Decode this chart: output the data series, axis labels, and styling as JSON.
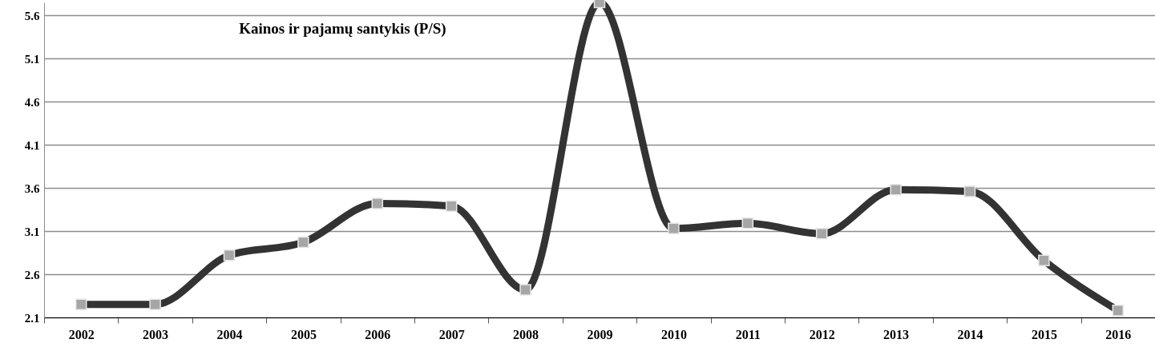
{
  "chart_data": {
    "type": "line",
    "title": "Kainos ir pajamų santykis (P/S)",
    "categories": [
      "2002",
      "2003",
      "2004",
      "2005",
      "2006",
      "2007",
      "2008",
      "2009",
      "2010",
      "2011",
      "2012",
      "2013",
      "2014",
      "2015",
      "2016"
    ],
    "series": [
      {
        "color": "#333333",
        "values": [
          2.25,
          2.25,
          2.82,
          2.97,
          3.42,
          3.39,
          2.42,
          5.75,
          3.13,
          3.19,
          3.07,
          3.58,
          3.56,
          2.76,
          2.18
        ]
      }
    ],
    "ylim": [
      2.1,
      5.75
    ],
    "yticks": [
      2.1,
      2.6,
      3.1,
      3.6,
      4.1,
      4.6,
      5.1,
      5.6
    ],
    "grid": "y",
    "marker": "square",
    "line_style": "solid"
  }
}
